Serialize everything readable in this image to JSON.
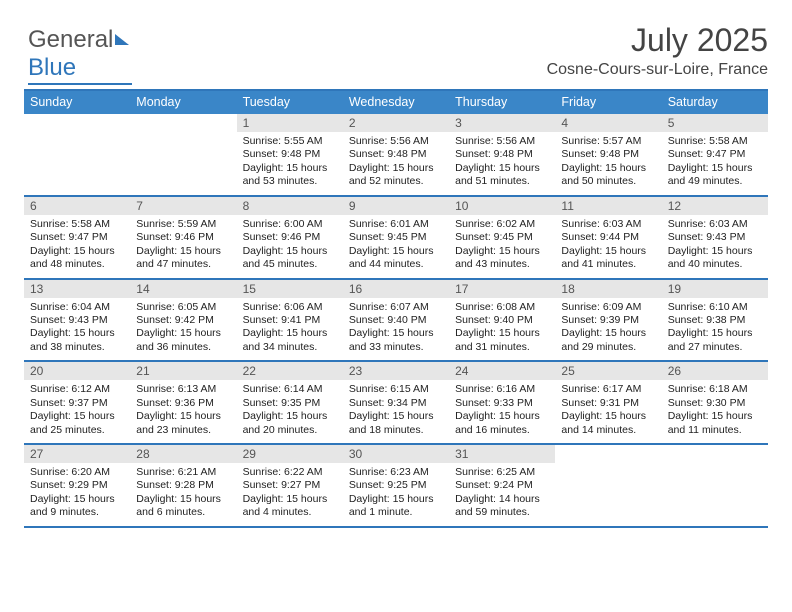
{
  "logo": {
    "text1": "General",
    "text2": "Blue"
  },
  "header": {
    "month": "July 2025",
    "location": "Cosne-Cours-sur-Loire, France"
  },
  "colors": {
    "accent": "#2f76ba",
    "header_bg": "#3a86c8",
    "daynum_bg": "#e6e6e6",
    "text": "#222222",
    "bg": "#ffffff"
  },
  "dayHeaders": [
    "Sunday",
    "Monday",
    "Tuesday",
    "Wednesday",
    "Thursday",
    "Friday",
    "Saturday"
  ],
  "weeks": [
    [
      {
        "num": "",
        "sunrise": "",
        "sunset": "",
        "daylight": ""
      },
      {
        "num": "",
        "sunrise": "",
        "sunset": "",
        "daylight": ""
      },
      {
        "num": "1",
        "sunrise": "Sunrise: 5:55 AM",
        "sunset": "Sunset: 9:48 PM",
        "daylight": "Daylight: 15 hours and 53 minutes."
      },
      {
        "num": "2",
        "sunrise": "Sunrise: 5:56 AM",
        "sunset": "Sunset: 9:48 PM",
        "daylight": "Daylight: 15 hours and 52 minutes."
      },
      {
        "num": "3",
        "sunrise": "Sunrise: 5:56 AM",
        "sunset": "Sunset: 9:48 PM",
        "daylight": "Daylight: 15 hours and 51 minutes."
      },
      {
        "num": "4",
        "sunrise": "Sunrise: 5:57 AM",
        "sunset": "Sunset: 9:48 PM",
        "daylight": "Daylight: 15 hours and 50 minutes."
      },
      {
        "num": "5",
        "sunrise": "Sunrise: 5:58 AM",
        "sunset": "Sunset: 9:47 PM",
        "daylight": "Daylight: 15 hours and 49 minutes."
      }
    ],
    [
      {
        "num": "6",
        "sunrise": "Sunrise: 5:58 AM",
        "sunset": "Sunset: 9:47 PM",
        "daylight": "Daylight: 15 hours and 48 minutes."
      },
      {
        "num": "7",
        "sunrise": "Sunrise: 5:59 AM",
        "sunset": "Sunset: 9:46 PM",
        "daylight": "Daylight: 15 hours and 47 minutes."
      },
      {
        "num": "8",
        "sunrise": "Sunrise: 6:00 AM",
        "sunset": "Sunset: 9:46 PM",
        "daylight": "Daylight: 15 hours and 45 minutes."
      },
      {
        "num": "9",
        "sunrise": "Sunrise: 6:01 AM",
        "sunset": "Sunset: 9:45 PM",
        "daylight": "Daylight: 15 hours and 44 minutes."
      },
      {
        "num": "10",
        "sunrise": "Sunrise: 6:02 AM",
        "sunset": "Sunset: 9:45 PM",
        "daylight": "Daylight: 15 hours and 43 minutes."
      },
      {
        "num": "11",
        "sunrise": "Sunrise: 6:03 AM",
        "sunset": "Sunset: 9:44 PM",
        "daylight": "Daylight: 15 hours and 41 minutes."
      },
      {
        "num": "12",
        "sunrise": "Sunrise: 6:03 AM",
        "sunset": "Sunset: 9:43 PM",
        "daylight": "Daylight: 15 hours and 40 minutes."
      }
    ],
    [
      {
        "num": "13",
        "sunrise": "Sunrise: 6:04 AM",
        "sunset": "Sunset: 9:43 PM",
        "daylight": "Daylight: 15 hours and 38 minutes."
      },
      {
        "num": "14",
        "sunrise": "Sunrise: 6:05 AM",
        "sunset": "Sunset: 9:42 PM",
        "daylight": "Daylight: 15 hours and 36 minutes."
      },
      {
        "num": "15",
        "sunrise": "Sunrise: 6:06 AM",
        "sunset": "Sunset: 9:41 PM",
        "daylight": "Daylight: 15 hours and 34 minutes."
      },
      {
        "num": "16",
        "sunrise": "Sunrise: 6:07 AM",
        "sunset": "Sunset: 9:40 PM",
        "daylight": "Daylight: 15 hours and 33 minutes."
      },
      {
        "num": "17",
        "sunrise": "Sunrise: 6:08 AM",
        "sunset": "Sunset: 9:40 PM",
        "daylight": "Daylight: 15 hours and 31 minutes."
      },
      {
        "num": "18",
        "sunrise": "Sunrise: 6:09 AM",
        "sunset": "Sunset: 9:39 PM",
        "daylight": "Daylight: 15 hours and 29 minutes."
      },
      {
        "num": "19",
        "sunrise": "Sunrise: 6:10 AM",
        "sunset": "Sunset: 9:38 PM",
        "daylight": "Daylight: 15 hours and 27 minutes."
      }
    ],
    [
      {
        "num": "20",
        "sunrise": "Sunrise: 6:12 AM",
        "sunset": "Sunset: 9:37 PM",
        "daylight": "Daylight: 15 hours and 25 minutes."
      },
      {
        "num": "21",
        "sunrise": "Sunrise: 6:13 AM",
        "sunset": "Sunset: 9:36 PM",
        "daylight": "Daylight: 15 hours and 23 minutes."
      },
      {
        "num": "22",
        "sunrise": "Sunrise: 6:14 AM",
        "sunset": "Sunset: 9:35 PM",
        "daylight": "Daylight: 15 hours and 20 minutes."
      },
      {
        "num": "23",
        "sunrise": "Sunrise: 6:15 AM",
        "sunset": "Sunset: 9:34 PM",
        "daylight": "Daylight: 15 hours and 18 minutes."
      },
      {
        "num": "24",
        "sunrise": "Sunrise: 6:16 AM",
        "sunset": "Sunset: 9:33 PM",
        "daylight": "Daylight: 15 hours and 16 minutes."
      },
      {
        "num": "25",
        "sunrise": "Sunrise: 6:17 AM",
        "sunset": "Sunset: 9:31 PM",
        "daylight": "Daylight: 15 hours and 14 minutes."
      },
      {
        "num": "26",
        "sunrise": "Sunrise: 6:18 AM",
        "sunset": "Sunset: 9:30 PM",
        "daylight": "Daylight: 15 hours and 11 minutes."
      }
    ],
    [
      {
        "num": "27",
        "sunrise": "Sunrise: 6:20 AM",
        "sunset": "Sunset: 9:29 PM",
        "daylight": "Daylight: 15 hours and 9 minutes."
      },
      {
        "num": "28",
        "sunrise": "Sunrise: 6:21 AM",
        "sunset": "Sunset: 9:28 PM",
        "daylight": "Daylight: 15 hours and 6 minutes."
      },
      {
        "num": "29",
        "sunrise": "Sunrise: 6:22 AM",
        "sunset": "Sunset: 9:27 PM",
        "daylight": "Daylight: 15 hours and 4 minutes."
      },
      {
        "num": "30",
        "sunrise": "Sunrise: 6:23 AM",
        "sunset": "Sunset: 9:25 PM",
        "daylight": "Daylight: 15 hours and 1 minute."
      },
      {
        "num": "31",
        "sunrise": "Sunrise: 6:25 AM",
        "sunset": "Sunset: 9:24 PM",
        "daylight": "Daylight: 14 hours and 59 minutes."
      },
      {
        "num": "",
        "sunrise": "",
        "sunset": "",
        "daylight": ""
      },
      {
        "num": "",
        "sunrise": "",
        "sunset": "",
        "daylight": ""
      }
    ]
  ]
}
